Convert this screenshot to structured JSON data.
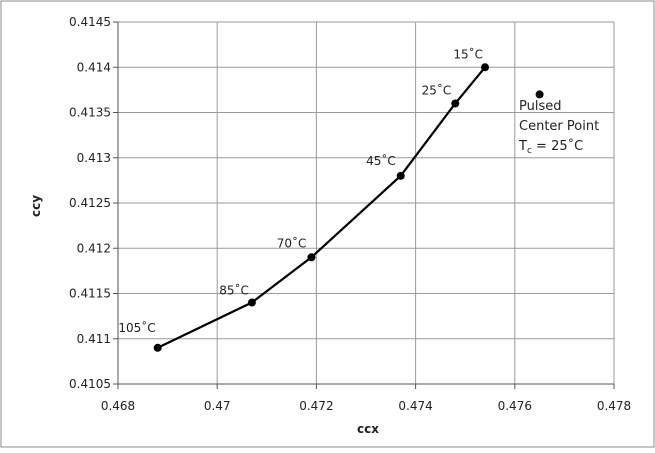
{
  "chart_data": {
    "type": "scatter",
    "title": "",
    "xlabel": "ccx",
    "ylabel": "ccy",
    "xlim": [
      0.468,
      0.478
    ],
    "ylim": [
      0.4105,
      0.4145
    ],
    "grid": true,
    "x_ticks": [
      "0.468",
      "0.47",
      "0.472",
      "0.474",
      "0.476",
      "0.478"
    ],
    "y_ticks": [
      "0.4105",
      "0.411",
      "0.4115",
      "0.412",
      "0.4125",
      "0.413",
      "0.4135",
      "0.414",
      "0.4145"
    ],
    "series": [
      {
        "points": [
          {
            "x": 0.4688,
            "y": 0.4109,
            "label": "105˚C"
          },
          {
            "x": 0.4707,
            "y": 0.4114,
            "label": "85˚C"
          },
          {
            "x": 0.4719,
            "y": 0.4119,
            "label": "70˚C"
          },
          {
            "x": 0.4737,
            "y": 0.4128,
            "label": "45˚C"
          },
          {
            "x": 0.4748,
            "y": 0.4136,
            "label": "25˚C"
          },
          {
            "x": 0.4754,
            "y": 0.414,
            "label": "15˚C"
          }
        ]
      },
      {
        "points": [
          {
            "x": 0.4765,
            "y": 0.4137
          }
        ]
      }
    ],
    "annotation": {
      "line1": "Pulsed",
      "line2": "Center Point",
      "line3_main": "T",
      "line3_sub": "c",
      "line3_rest": " = 25˚C"
    }
  }
}
